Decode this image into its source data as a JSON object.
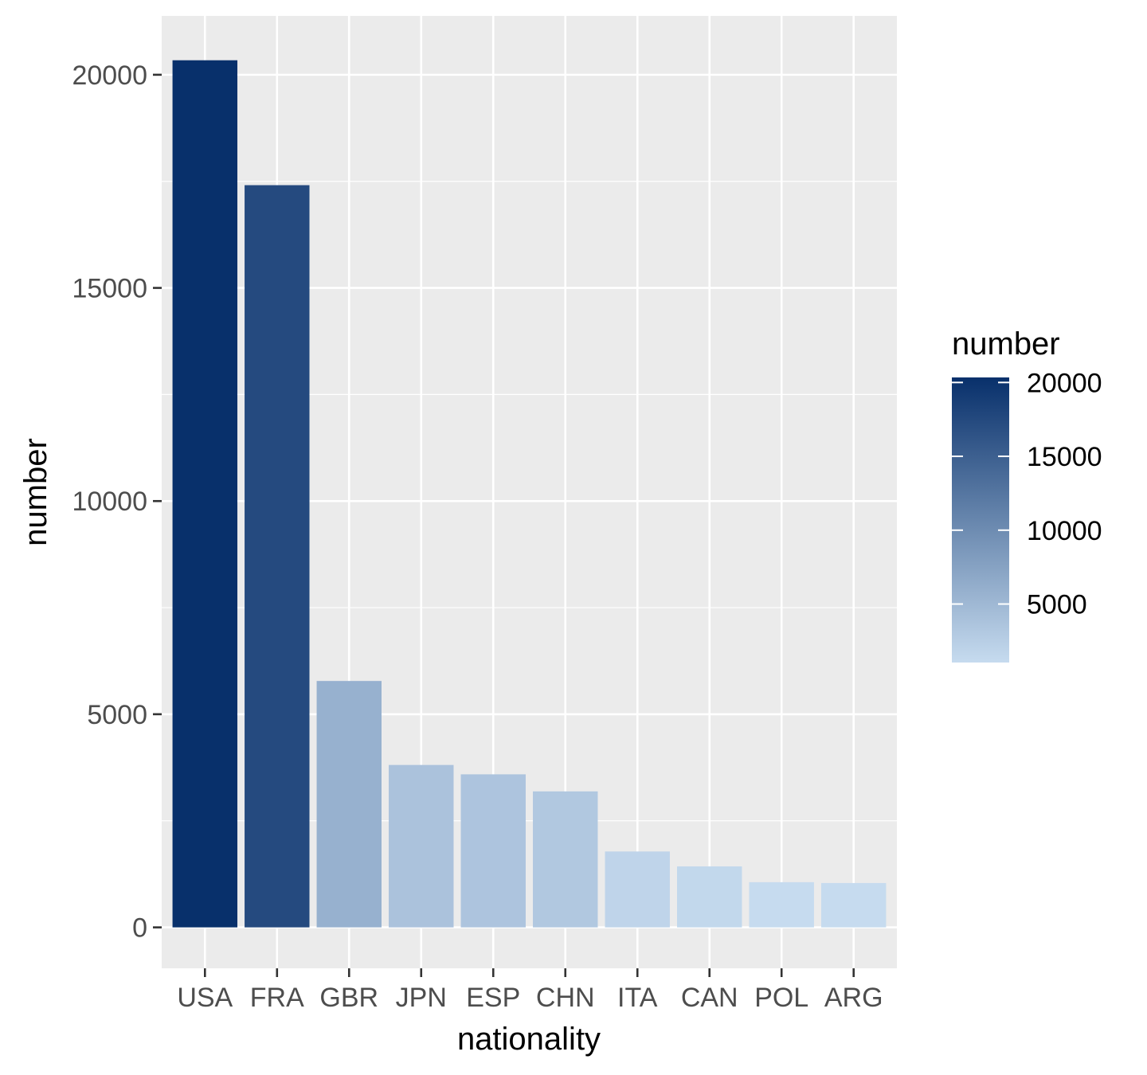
{
  "chart_data": {
    "type": "bar",
    "title": "",
    "xlabel": "nationality",
    "ylabel": "number",
    "categories": [
      "USA",
      "FRA",
      "GBR",
      "JPN",
      "ESP",
      "CHN",
      "ITA",
      "CAN",
      "POL",
      "ARG"
    ],
    "values": [
      20340,
      17410,
      5780,
      3810,
      3590,
      3190,
      1780,
      1430,
      1060,
      1040
    ],
    "ylim": [
      -960,
      21380
    ],
    "yticks": [
      0,
      5000,
      10000,
      15000,
      20000
    ],
    "ytick_labels": [
      "0",
      "5000",
      "10000",
      "15000",
      "20000"
    ],
    "grid": true,
    "legend": {
      "title": "number",
      "placement": "right",
      "type": "colorbar",
      "range": [
        1040,
        20340
      ],
      "breaks": [
        5000,
        10000,
        15000,
        20000
      ],
      "break_labels": [
        "5000",
        "10000",
        "15000",
        "20000"
      ],
      "low_color": "#c6dbef",
      "high_color": "#08306b"
    },
    "colors": {
      "panel_background": "#ebebeb",
      "grid": "#ffffff",
      "tick": "#333333"
    }
  }
}
